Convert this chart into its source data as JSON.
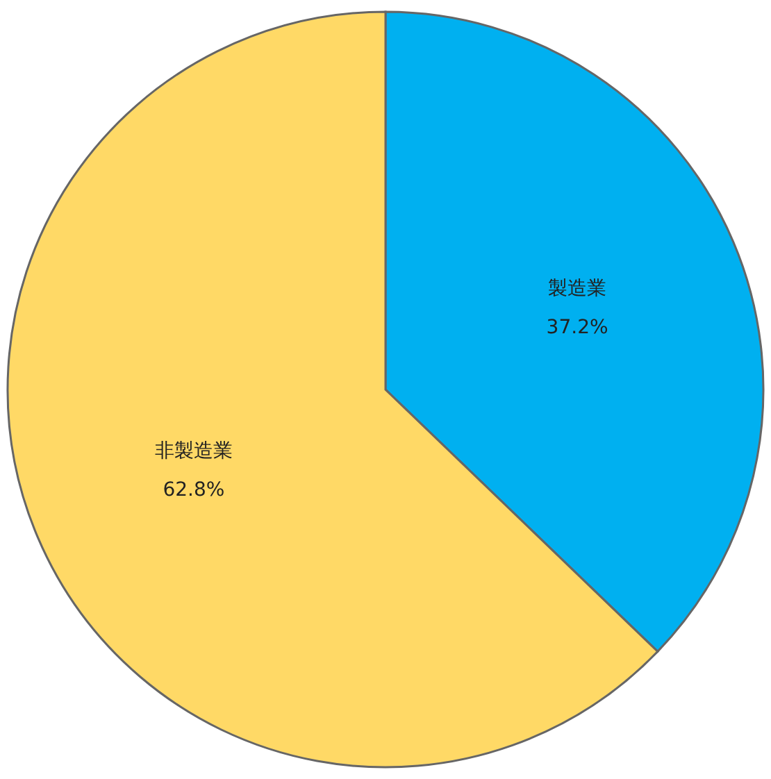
{
  "chart_data": {
    "type": "pie",
    "categories": [
      "製造業",
      "非製造業"
    ],
    "values": [
      37.2,
      62.8
    ],
    "colors": [
      "#00b0f0",
      "#ffd966"
    ],
    "data_labels": true,
    "value_labels": [
      "37.2%",
      "62.8%"
    ],
    "legend": false
  }
}
